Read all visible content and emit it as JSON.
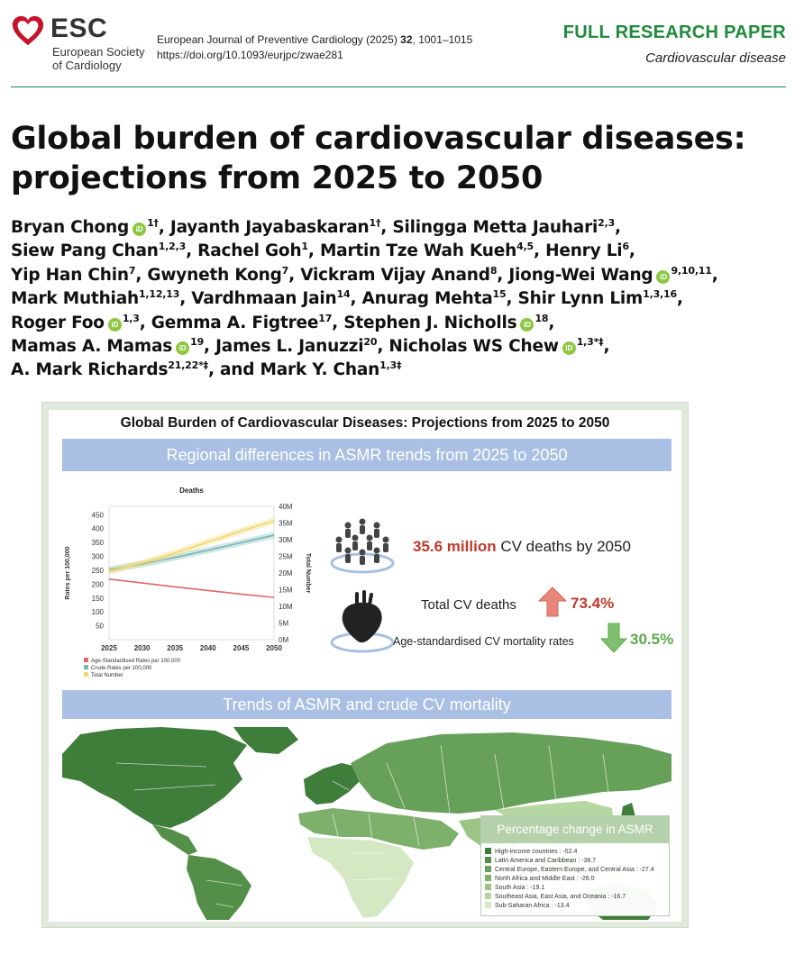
{
  "header": {
    "logo": {
      "acronym": "ESC",
      "name_line1": "European Society",
      "name_line2": "of Cardiology"
    },
    "journal_line_prefix": "European Journal of Preventive Cardiology (2025) ",
    "journal_volume": "32",
    "journal_pages": ", 1001–1015",
    "doi": "https://doi.org/10.1093/eurjpc/zwae281",
    "article_type": "FULL RESEARCH PAPER",
    "subject": "Cardiovascular disease",
    "accent_color": "#1e8a3a"
  },
  "title_line1": "Global burden of cardiovascular diseases:",
  "title_line2": "projections from 2025 to 2050",
  "authors": [
    {
      "name": "Bryan Chong",
      "orcid": true,
      "aff": "1†",
      "sep": ", "
    },
    {
      "name": "Jayanth Jayabaskaran",
      "orcid": false,
      "aff": "1†",
      "sep": ", "
    },
    {
      "name": "Silingga Metta Jauhari",
      "orcid": false,
      "aff": "2,3",
      "sep": ","
    },
    {
      "name": "Siew Pang Chan",
      "orcid": false,
      "aff": "1,2,3",
      "sep": ", "
    },
    {
      "name": "Rachel Goh",
      "orcid": false,
      "aff": "1",
      "sep": ", "
    },
    {
      "name": "Martin Tze Wah Kueh",
      "orcid": false,
      "aff": "4,5",
      "sep": ", "
    },
    {
      "name": "Henry Li",
      "orcid": false,
      "aff": "6",
      "sep": ","
    },
    {
      "name": "Yip Han Chin",
      "orcid": false,
      "aff": "7",
      "sep": ", "
    },
    {
      "name": "Gwyneth Kong",
      "orcid": false,
      "aff": "7",
      "sep": ", "
    },
    {
      "name": "Vickram Vijay Anand",
      "orcid": false,
      "aff": "8",
      "sep": ", "
    },
    {
      "name": "Jiong-Wei Wang",
      "orcid": true,
      "aff": "9,10,11",
      "sep": ","
    },
    {
      "name": "Mark Muthiah",
      "orcid": false,
      "aff": "1,12,13",
      "sep": ", "
    },
    {
      "name": "Vardhmaan Jain",
      "orcid": false,
      "aff": "14",
      "sep": ", "
    },
    {
      "name": "Anurag Mehta",
      "orcid": false,
      "aff": "15",
      "sep": ", "
    },
    {
      "name": "Shir Lynn Lim",
      "orcid": false,
      "aff": "1,3,16",
      "sep": ","
    },
    {
      "name": "Roger Foo",
      "orcid": true,
      "aff": "1,3",
      "sep": ", "
    },
    {
      "name": "Gemma A. Figtree",
      "orcid": false,
      "aff": "17",
      "sep": ", "
    },
    {
      "name": "Stephen J. Nicholls",
      "orcid": true,
      "aff": "18",
      "sep": ","
    },
    {
      "name": "Mamas A. Mamas",
      "orcid": true,
      "aff": "19",
      "sep": ", "
    },
    {
      "name": "James L. Januzzi",
      "orcid": false,
      "aff": "20",
      "sep": ", "
    },
    {
      "name": "Nicholas WS Chew",
      "orcid": true,
      "aff": "1,3,*,‡",
      "sep": ","
    },
    {
      "name": "A. Mark Richards",
      "orcid": false,
      "aff": "21,22,*,‡",
      "sep": ", and "
    },
    {
      "name": "Mark Y. Chan",
      "orcid": false,
      "aff": "1,3‡",
      "sep": ""
    }
  ],
  "abstract": {
    "title": "Global Burden of Cardiovascular Diseases: Projections from 2025 to 2050",
    "section1_title": "Regional differences in ASMR trends from 2025 to 2050",
    "section2_title": "Trends of ASMR and crude CV mortality",
    "kpi_main_value": "35.6 million",
    "kpi_main_rest": " CV deaths by 2050",
    "kpi_total_label": "Total CV deaths",
    "kpi_total_pct": "73.4%",
    "kpi_asmr_label": "Age-standardised CV mortality rates",
    "kpi_asmr_pct": "30.5%",
    "kpi_up_color": "#e8867a",
    "kpi_down_color": "#7fc06e",
    "map_legend_title": "Percentage change in ASMR",
    "map_legend": [
      {
        "label": "High-income countries : -52.4",
        "color": "#3f7d3a"
      },
      {
        "label": "Latin America and Caribbean : -38.7",
        "color": "#538f48"
      },
      {
        "label": "Central Europe, Eastern Europe, and Central Asia : -27.4",
        "color": "#67a058"
      },
      {
        "label": "North Africa and Middle East : -26.0",
        "color": "#7db06a"
      },
      {
        "label": "South Asia : -19.1",
        "color": "#9bc587"
      },
      {
        "label": "Southeast Asia, East Asia, and Oceania : -16.7",
        "color": "#b6d6a2"
      },
      {
        "label": "Sub-Saharan Africa : -13.4",
        "color": "#d4e8c4"
      }
    ]
  },
  "chart_data": {
    "type": "line",
    "title": "Deaths",
    "xlabel": "",
    "ylabel": "Rates per 100,000",
    "ylabel_right": "Total Number",
    "x": [
      2025,
      2030,
      2035,
      2040,
      2045,
      2050
    ],
    "xlim": [
      2025,
      2050
    ],
    "ylim": [
      0,
      480
    ],
    "y_ticks": [
      50,
      100,
      150,
      200,
      250,
      300,
      350,
      400,
      450
    ],
    "y2lim": [
      0,
      40000000
    ],
    "y2_tick_labels": [
      "0M",
      "5M",
      "10M",
      "15M",
      "20M",
      "25M",
      "30M",
      "35M",
      "40M"
    ],
    "series": [
      {
        "name": "Age-Standardised Rates per 100,000",
        "axis": "left",
        "color": "#e06666",
        "values": [
          218,
          204,
          190,
          177,
          164,
          152
        ]
      },
      {
        "name": "Crude Rates per 100,000",
        "axis": "left",
        "color": "#76b7b2",
        "values": [
          252,
          272,
          296,
          322,
          349,
          376
        ]
      },
      {
        "name": "Total Number",
        "axis": "right",
        "color": "#f2d66b",
        "values": [
          20500000,
          23000000,
          26000000,
          29300000,
          32600000,
          35600000
        ]
      }
    ],
    "grid": false,
    "legend_position": "bottom-left"
  }
}
